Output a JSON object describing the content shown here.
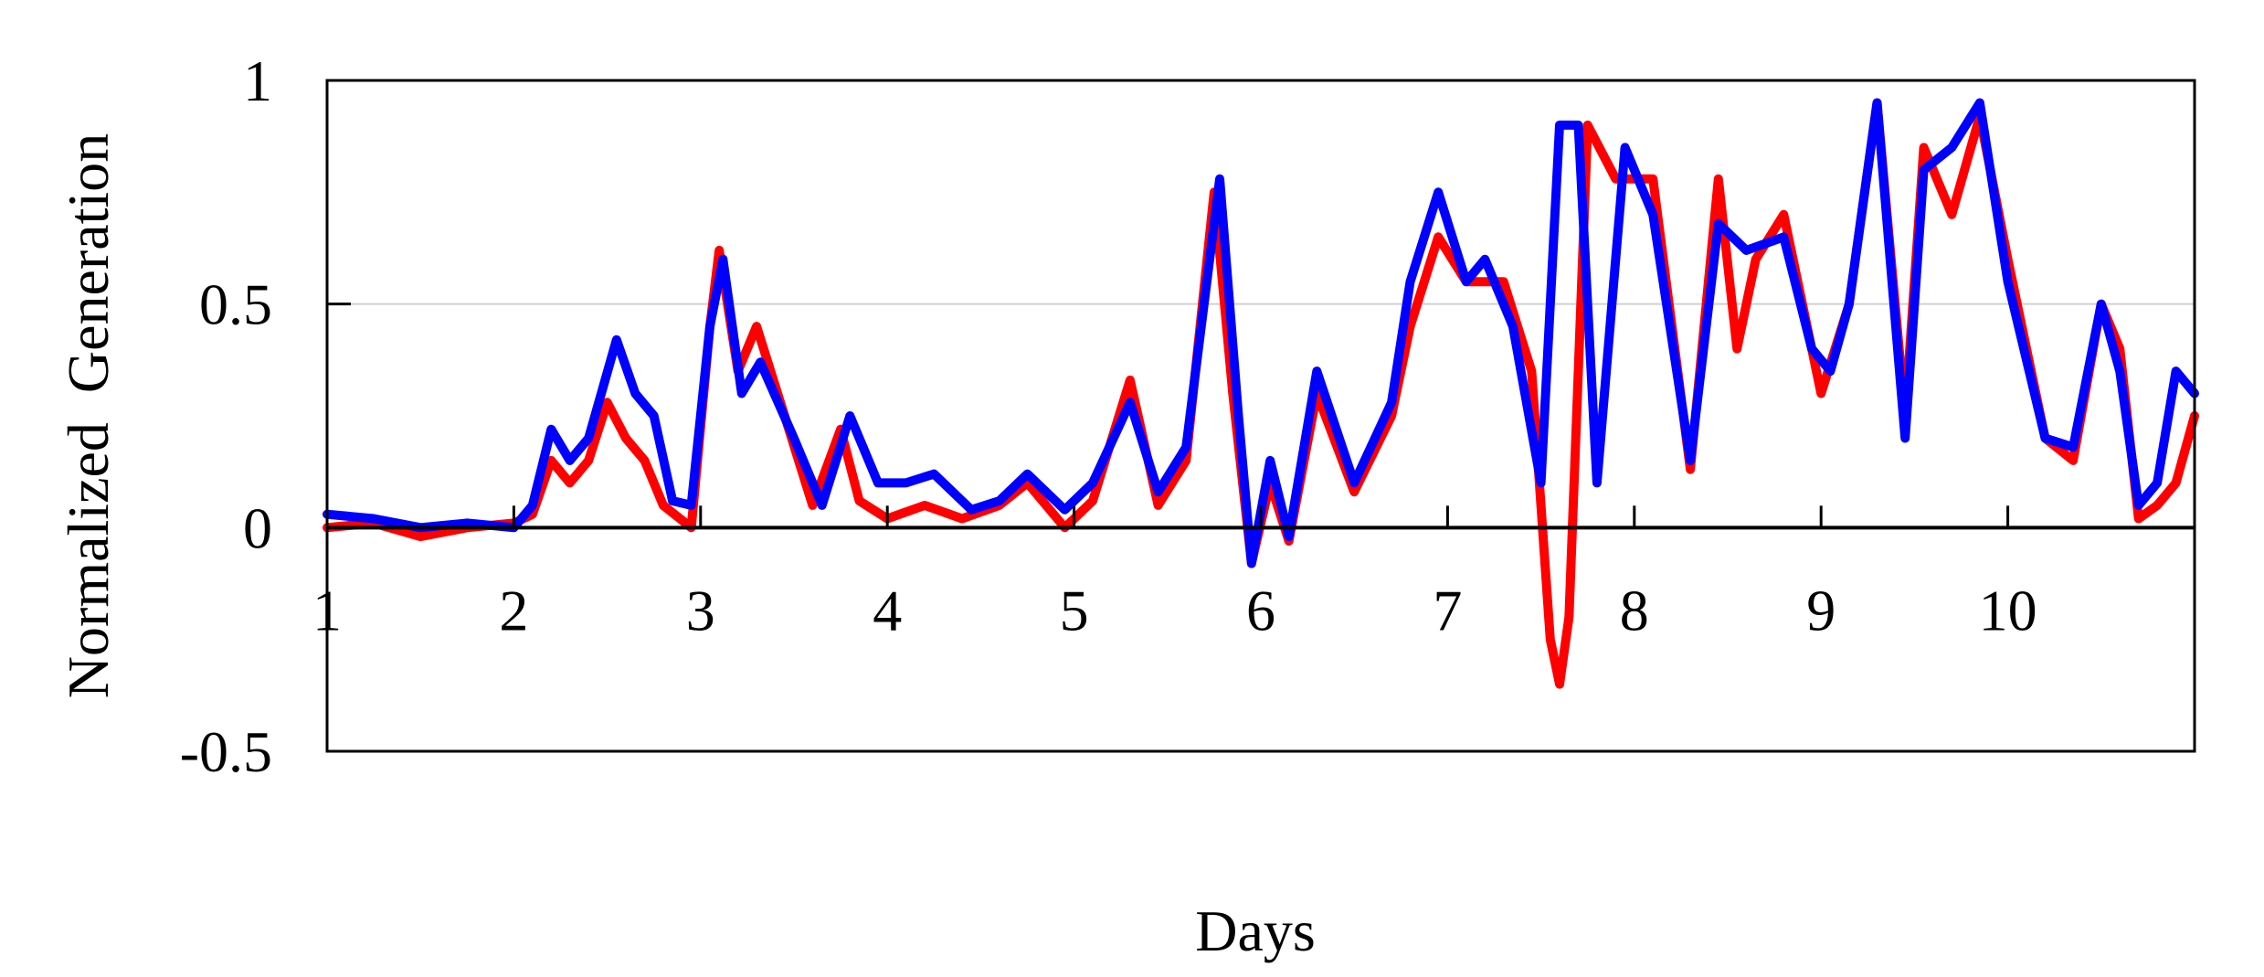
{
  "chart_data": {
    "type": "line",
    "title": "",
    "xlabel": "Days",
    "ylabel": "Normalized  Generation",
    "xlim": [
      1,
      11
    ],
    "ylim": [
      -0.5,
      1
    ],
    "x_ticks": [
      1,
      2,
      3,
      4,
      5,
      6,
      7,
      8,
      9,
      10
    ],
    "x_tick_labels": [
      "1",
      "2",
      "3",
      "4",
      "5",
      "6",
      "7",
      "8",
      "9",
      "10"
    ],
    "y_ticks": [
      -0.5,
      0,
      0.5,
      1
    ],
    "y_tick_labels": [
      "-0.5",
      "0",
      "0.5",
      "1"
    ],
    "grid": "horizontal gridline at 0.5",
    "legend": "none",
    "colors": {
      "series_red": "#ff0000",
      "series_blue": "#0000ff",
      "zero_line": "#000000",
      "grid": "#d0d0d0"
    },
    "series": [
      {
        "color": "#ff0000",
        "x": [
          1.0,
          1.25,
          1.5,
          1.75,
          2.0,
          2.1,
          2.2,
          2.3,
          2.4,
          2.5,
          2.6,
          2.7,
          2.8,
          2.95,
          3.05,
          3.1,
          3.2,
          3.3,
          3.45,
          3.6,
          3.75,
          3.85,
          4.0,
          4.2,
          4.4,
          4.6,
          4.75,
          4.95,
          5.1,
          5.3,
          5.45,
          5.6,
          5.75,
          5.85,
          5.95,
          6.05,
          6.15,
          6.3,
          6.5,
          6.7,
          6.8,
          6.95,
          7.1,
          7.3,
          7.45,
          7.55,
          7.6,
          7.65,
          7.75,
          7.9,
          8.1,
          8.3,
          8.45,
          8.55,
          8.65,
          8.8,
          9.0,
          9.15,
          9.3,
          9.45,
          9.55,
          9.7,
          9.85,
          10.0,
          10.2,
          10.35,
          10.5,
          10.6,
          10.7,
          10.8,
          10.9,
          11.0
        ],
        "y": [
          0.0,
          0.01,
          -0.02,
          0.0,
          0.01,
          0.03,
          0.15,
          0.1,
          0.15,
          0.28,
          0.2,
          0.15,
          0.05,
          0.0,
          0.45,
          0.62,
          0.35,
          0.45,
          0.25,
          0.05,
          0.22,
          0.06,
          0.02,
          0.05,
          0.02,
          0.05,
          0.1,
          0.0,
          0.06,
          0.33,
          0.05,
          0.15,
          0.75,
          0.3,
          -0.08,
          0.1,
          -0.03,
          0.3,
          0.08,
          0.25,
          0.45,
          0.65,
          0.55,
          0.55,
          0.35,
          -0.25,
          -0.35,
          -0.2,
          0.9,
          0.78,
          0.78,
          0.13,
          0.78,
          0.4,
          0.6,
          0.7,
          0.3,
          0.5,
          0.95,
          0.25,
          0.85,
          0.7,
          0.92,
          0.6,
          0.2,
          0.15,
          0.5,
          0.4,
          0.02,
          0.05,
          0.1,
          0.25
        ]
      },
      {
        "color": "#0000ff",
        "x": [
          1.0,
          1.25,
          1.5,
          1.75,
          2.0,
          2.1,
          2.2,
          2.3,
          2.4,
          2.55,
          2.65,
          2.75,
          2.85,
          2.95,
          3.05,
          3.12,
          3.22,
          3.32,
          3.5,
          3.65,
          3.8,
          3.95,
          4.1,
          4.25,
          4.45,
          4.6,
          4.75,
          4.95,
          5.1,
          5.3,
          5.45,
          5.6,
          5.78,
          5.88,
          5.95,
          6.05,
          6.15,
          6.3,
          6.5,
          6.7,
          6.8,
          6.95,
          7.1,
          7.2,
          7.35,
          7.5,
          7.6,
          7.7,
          7.8,
          7.95,
          8.1,
          8.3,
          8.45,
          8.6,
          8.8,
          8.95,
          9.05,
          9.15,
          9.3,
          9.45,
          9.55,
          9.7,
          9.85,
          10.0,
          10.2,
          10.35,
          10.5,
          10.6,
          10.7,
          10.8,
          10.9,
          11.0
        ],
        "y": [
          0.03,
          0.02,
          0.0,
          0.01,
          0.0,
          0.05,
          0.22,
          0.15,
          0.2,
          0.42,
          0.3,
          0.25,
          0.06,
          0.05,
          0.45,
          0.6,
          0.3,
          0.37,
          0.2,
          0.05,
          0.25,
          0.1,
          0.1,
          0.12,
          0.04,
          0.06,
          0.12,
          0.04,
          0.1,
          0.28,
          0.08,
          0.18,
          0.78,
          0.25,
          -0.08,
          0.15,
          -0.02,
          0.35,
          0.1,
          0.28,
          0.55,
          0.75,
          0.55,
          0.6,
          0.45,
          0.1,
          0.9,
          0.9,
          0.1,
          0.85,
          0.7,
          0.15,
          0.68,
          0.62,
          0.65,
          0.4,
          0.35,
          0.5,
          0.95,
          0.2,
          0.8,
          0.85,
          0.95,
          0.55,
          0.2,
          0.18,
          0.5,
          0.35,
          0.05,
          0.1,
          0.35,
          0.3
        ]
      }
    ]
  }
}
